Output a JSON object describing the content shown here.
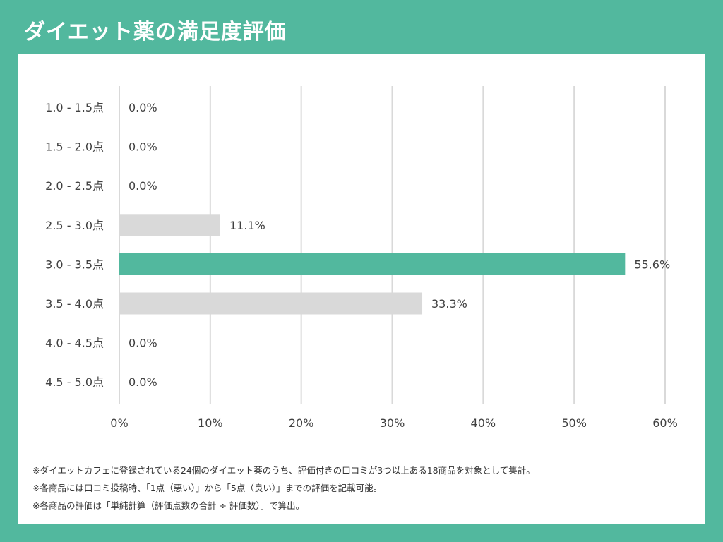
{
  "page": {
    "title": "ダイエット薬の満足度評価"
  },
  "chart_data": {
    "type": "bar",
    "orientation": "horizontal",
    "categories": [
      "1.0 - 1.5点",
      "1.5 - 2.0点",
      "2.0 - 2.5点",
      "2.5 - 3.0点",
      "3.0 - 3.5点",
      "3.5 - 4.0点",
      "4.0 - 4.5点",
      "4.5 - 5.0点"
    ],
    "values": [
      0.0,
      0.0,
      0.0,
      11.1,
      55.6,
      33.3,
      0.0,
      0.0
    ],
    "value_labels": [
      "0.0%",
      "0.0%",
      "0.0%",
      "11.1%",
      "55.6%",
      "33.3%",
      "0.0%",
      "0.0%"
    ],
    "xlim": [
      0,
      60
    ],
    "x_ticks": [
      0,
      10,
      20,
      30,
      40,
      50,
      60
    ],
    "x_tick_labels": [
      "0%",
      "10%",
      "20%",
      "30%",
      "40%",
      "50%",
      "60%"
    ],
    "grid": true,
    "highlight_index": 4,
    "colors": {
      "bar": "#d9d9d9",
      "highlight": "#52b89e",
      "grid": "#d9d9d9",
      "text": "#404040"
    }
  },
  "notes": [
    "※ダイエットカフェに登録されている24個のダイエット薬のうち、評価付きの口コミが3つ以上ある18商品を対象として集計。",
    "※各商品には口コミ投稿時、「1点（悪い）」から「5点（良い）」までの評価を記載可能。",
    "※各商品の評価は「単純計算（評価点数の合計 ÷ 評価数）」で算出。"
  ]
}
